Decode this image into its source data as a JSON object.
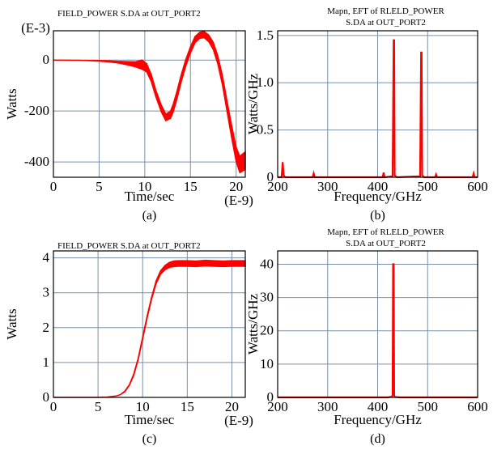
{
  "chart_data": [
    {
      "id": "a",
      "type": "line",
      "title": "FIELD_POWER S.DA at OUT_PORT2",
      "xlabel": "Time/sec",
      "ylabel": "Watts",
      "x_exponent": "(E-9)",
      "y_exponent": "(E-3)",
      "caption": "(a)",
      "xlim": [
        0,
        21
      ],
      "ylim": [
        -460,
        115
      ],
      "xticks": [
        0,
        5,
        10,
        15,
        20
      ],
      "yticks": [
        0,
        -200,
        -400
      ],
      "series": [
        {
          "color": "#ff0000",
          "x": [
            0,
            3,
            5,
            6,
            7,
            8,
            9,
            9.7,
            10.2,
            10.7,
            11.2,
            11.8,
            12.3,
            12.8,
            13.1,
            13.5,
            14,
            14.5,
            15,
            15.5,
            16,
            16.5,
            17,
            17.5,
            18,
            18.5,
            19,
            19.5,
            20,
            20.4,
            20.8,
            21
          ],
          "y": [
            0,
            -1,
            -3,
            -5,
            -8,
            -12,
            -17,
            -18,
            -30,
            -70,
            -130,
            -190,
            -225,
            -215,
            -190,
            -140,
            -70,
            -10,
            40,
            80,
            97,
            100,
            85,
            55,
            0,
            -80,
            -180,
            -280,
            -370,
            -410,
            -400,
            -395
          ],
          "envelope": [
            0,
            0,
            1,
            2,
            3,
            6,
            10,
            18,
            16,
            14,
            13,
            13,
            13,
            14,
            15,
            15,
            14,
            13,
            12,
            12,
            12,
            12,
            13,
            14,
            16,
            18,
            20,
            24,
            28,
            32,
            34,
            34
          ]
        }
      ]
    },
    {
      "id": "b",
      "type": "line",
      "title": "Mapn, EFT of RLELD_POWER",
      "subtitle": "S.DA at OUT_PORT2",
      "xlabel": "Frequency/GHz",
      "ylabel": "Watts/GHz",
      "caption": "(b)",
      "xlim": [
        200,
        600
      ],
      "ylim": [
        0,
        1.55
      ],
      "xticks": [
        200,
        300,
        400,
        500,
        600
      ],
      "yticks": [
        0,
        0.5,
        1.0,
        1.5
      ],
      "ytick_labels": [
        "0",
        "0.5",
        "1.0",
        "1.5"
      ],
      "series": [
        {
          "color": "#ff0000",
          "x": [
            200,
            208,
            210,
            212,
            215,
            270,
            272,
            274,
            410,
            412,
            414,
            430,
            432,
            433,
            434,
            436,
            438,
            485,
            487,
            488,
            489,
            491,
            493,
            515,
            517,
            519,
            590,
            592,
            594,
            600
          ],
          "y": [
            0,
            0,
            0.16,
            0.02,
            0,
            0,
            0.04,
            0,
            0,
            0.05,
            0,
            0.01,
            1.45,
            1.45,
            0.02,
            0.01,
            0,
            0.01,
            1.32,
            1.32,
            0.02,
            0.01,
            0,
            0,
            0.03,
            0,
            0,
            0.04,
            0,
            0
          ]
        }
      ]
    },
    {
      "id": "c",
      "type": "line",
      "title": "FIELD_POWER S.DA at OUT_PORT2",
      "xlabel": "Time/sec",
      "ylabel": "Watts",
      "x_exponent": "(E-9)",
      "caption": "(c)",
      "xlim": [
        0,
        21.5
      ],
      "ylim": [
        0,
        4.2
      ],
      "xticks": [
        0,
        5,
        10,
        15,
        20
      ],
      "yticks": [
        0,
        1,
        2,
        3,
        4
      ],
      "series": [
        {
          "color": "#ff0000",
          "x": [
            0,
            5,
            6,
            7,
            7.5,
            8,
            8.5,
            9,
            9.5,
            10,
            10.5,
            11,
            11.5,
            12,
            12.5,
            13,
            13.5,
            14,
            15,
            16,
            17,
            18,
            19,
            20,
            21.5
          ],
          "y": [
            0,
            0,
            0.01,
            0.04,
            0.08,
            0.17,
            0.35,
            0.65,
            1.1,
            1.7,
            2.3,
            2.85,
            3.3,
            3.58,
            3.72,
            3.8,
            3.83,
            3.84,
            3.84,
            3.83,
            3.85,
            3.84,
            3.83,
            3.84,
            3.84
          ],
          "envelope": [
            0,
            0,
            0,
            0,
            0,
            0.01,
            0.01,
            0.02,
            0.02,
            0.03,
            0.03,
            0.03,
            0.04,
            0.05,
            0.06,
            0.07,
            0.08,
            0.08,
            0.08,
            0.08,
            0.08,
            0.08,
            0.08,
            0.08,
            0.08
          ]
        }
      ]
    },
    {
      "id": "d",
      "type": "line",
      "title": "Mapn, EFT of RLELD_POWER",
      "subtitle": "S.DA at OUT_PORT2",
      "xlabel": "Frequency/GHz",
      "ylabel": "Watts/GHz",
      "caption": "(d)",
      "xlim": [
        200,
        600
      ],
      "ylim": [
        0,
        44
      ],
      "xticks": [
        200,
        300,
        400,
        500,
        600
      ],
      "yticks": [
        0,
        10,
        20,
        30,
        40
      ],
      "series": [
        {
          "color": "#ff0000",
          "x": [
            200,
            420,
            428,
            430,
            431,
            432,
            433,
            434,
            436,
            445,
            600
          ],
          "y": [
            0,
            0,
            0.2,
            0.6,
            40,
            40,
            0.6,
            0.2,
            0.1,
            0,
            0
          ]
        }
      ]
    }
  ]
}
